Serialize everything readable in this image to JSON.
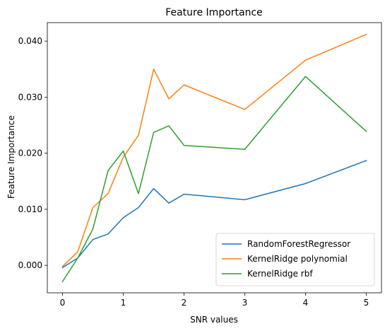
{
  "chart_data": {
    "type": "line",
    "title": "Feature Importance",
    "xlabel": "SNR values",
    "ylabel": "Feature Importance",
    "xlim": [
      -0.25,
      5.25
    ],
    "ylim": [
      -0.0049,
      0.0433
    ],
    "xticks": [
      0,
      1,
      2,
      3,
      4,
      5
    ],
    "xtick_labels": [
      "0",
      "1",
      "2",
      "3",
      "4",
      "5"
    ],
    "yticks": [
      0.0,
      0.01,
      0.02,
      0.03,
      0.04
    ],
    "ytick_labels": [
      "0.000",
      "0.010",
      "0.020",
      "0.030",
      "0.040"
    ],
    "x": [
      0,
      0.25,
      0.5,
      0.75,
      1.0,
      1.25,
      1.5,
      1.75,
      2.0,
      3.0,
      4.0,
      5.0
    ],
    "grid": false,
    "legend_position": "lower-right",
    "series": [
      {
        "name": "RandomForestRegressor",
        "color": "#1f77b4",
        "values": [
          -0.0004,
          0.0013,
          0.0046,
          0.0056,
          0.0085,
          0.0103,
          0.0137,
          0.0111,
          0.0127,
          0.0117,
          0.0146,
          0.0187
        ]
      },
      {
        "name": "KernelRidge polynomial",
        "color": "#ff7f0e",
        "values": [
          -0.0002,
          0.0024,
          0.0103,
          0.0128,
          0.0193,
          0.0232,
          0.035,
          0.0297,
          0.0322,
          0.0278,
          0.0366,
          0.0412
        ]
      },
      {
        "name": "KernelRidge rbf",
        "color": "#2ca02c",
        "values": [
          -0.0029,
          0.0013,
          0.0065,
          0.0169,
          0.0204,
          0.0128,
          0.0237,
          0.0249,
          0.0214,
          0.0207,
          0.0337,
          0.0239
        ]
      }
    ]
  }
}
